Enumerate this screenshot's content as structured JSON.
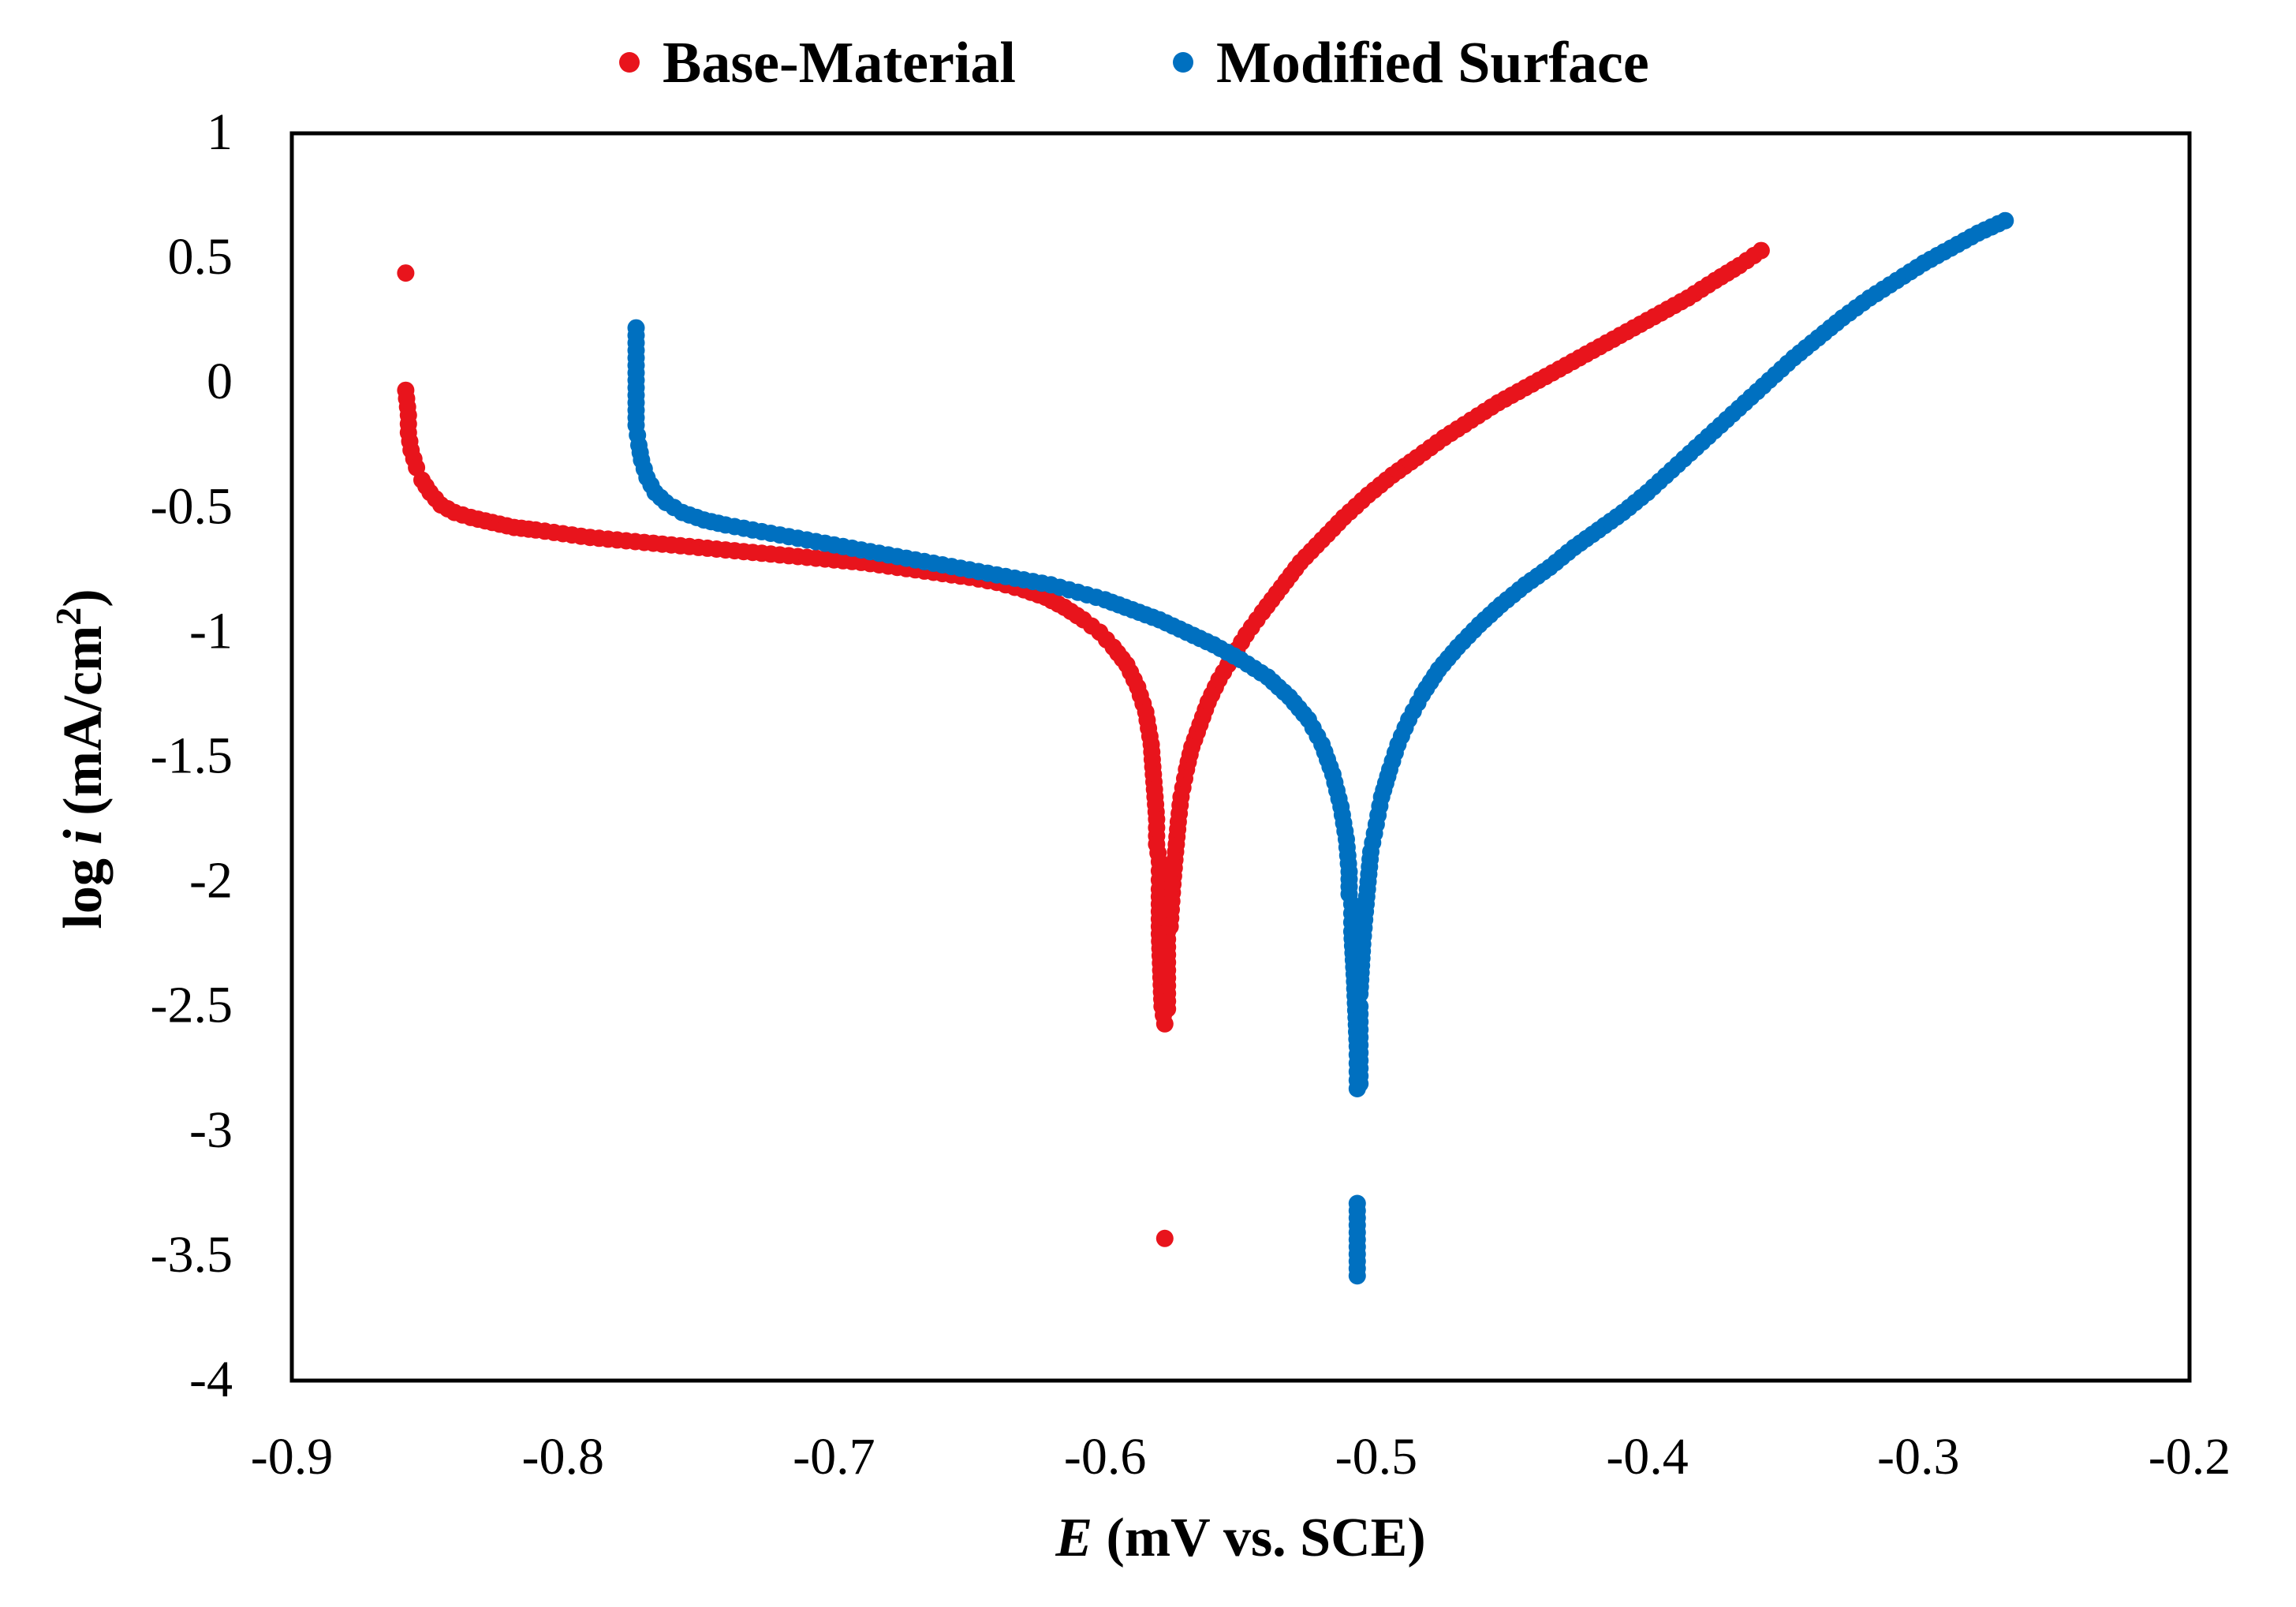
{
  "chart_data": {
    "type": "scatter",
    "title": "",
    "xlabel": {
      "italic": "E",
      "rest": " (mV vs. SCE)"
    },
    "ylabel": {
      "prefix": "log ",
      "italic": "i",
      "unit": " (mA/cm",
      "sup": "2",
      "close": ")"
    },
    "xlim": [
      -0.9,
      -0.2
    ],
    "ylim": [
      -4,
      1
    ],
    "x_ticks": [
      -0.9,
      -0.8,
      -0.7,
      -0.6,
      -0.5,
      -0.4,
      -0.3,
      -0.2
    ],
    "x_tick_labels": [
      "-0.9",
      "-0.8",
      "-0.7",
      "-0.6",
      "-0.5",
      "-0.4",
      "-0.3",
      "-0.2"
    ],
    "y_ticks": [
      1,
      0.5,
      0,
      -0.5,
      -1,
      -1.5,
      -2,
      -2.5,
      -3,
      -3.5,
      -4
    ],
    "y_tick_labels": [
      "1",
      "0.5",
      "0",
      "-0.5",
      "-1",
      "-1.5",
      "-2",
      "-2.5",
      "-3",
      "-3.5",
      "-4"
    ],
    "grid": false,
    "legend_position": "top",
    "series": [
      {
        "name": "Base-Material",
        "color": "#e8141c",
        "points": [
          [
            -0.858,
            0.44
          ],
          [
            -0.858,
            -0.03
          ],
          [
            -0.857,
            -0.13
          ],
          [
            -0.857,
            -0.2
          ],
          [
            -0.856,
            -0.27
          ],
          [
            -0.854,
            -0.34
          ],
          [
            -0.852,
            -0.39
          ],
          [
            -0.849,
            -0.44
          ],
          [
            -0.845,
            -0.49
          ],
          [
            -0.84,
            -0.52
          ],
          [
            -0.834,
            -0.54
          ],
          [
            -0.826,
            -0.56
          ],
          [
            -0.818,
            -0.58
          ],
          [
            -0.81,
            -0.59
          ],
          [
            -0.8,
            -0.605
          ],
          [
            -0.79,
            -0.62
          ],
          [
            -0.78,
            -0.63
          ],
          [
            -0.77,
            -0.64
          ],
          [
            -0.76,
            -0.65
          ],
          [
            -0.75,
            -0.66
          ],
          [
            -0.74,
            -0.67
          ],
          [
            -0.73,
            -0.68
          ],
          [
            -0.72,
            -0.69
          ],
          [
            -0.71,
            -0.7
          ],
          [
            -0.7,
            -0.71
          ],
          [
            -0.69,
            -0.72
          ],
          [
            -0.68,
            -0.735
          ],
          [
            -0.67,
            -0.75
          ],
          [
            -0.66,
            -0.765
          ],
          [
            -0.65,
            -0.78
          ],
          [
            -0.64,
            -0.8
          ],
          [
            -0.63,
            -0.83
          ],
          [
            -0.622,
            -0.86
          ],
          [
            -0.615,
            -0.9
          ],
          [
            -0.608,
            -0.95
          ],
          [
            -0.602,
            -1.0
          ],
          [
            -0.597,
            -1.06
          ],
          [
            -0.592,
            -1.13
          ],
          [
            -0.588,
            -1.22
          ],
          [
            -0.585,
            -1.32
          ],
          [
            -0.583,
            -1.45
          ],
          [
            -0.582,
            -1.6
          ],
          [
            -0.581,
            -1.75
          ],
          [
            -0.581,
            -1.85
          ],
          [
            -0.58,
            -1.92
          ],
          [
            -0.58,
            -2.03
          ],
          [
            -0.58,
            -2.21
          ],
          [
            -0.579,
            -2.5
          ],
          [
            -0.578,
            -2.57
          ],
          [
            -0.578,
            -3.43
          ],
          [
            -0.577,
            -2.51
          ],
          [
            -0.577,
            -2.2
          ],
          [
            -0.576,
            -2.18
          ],
          [
            -0.575,
            -2.01
          ],
          [
            -0.574,
            -1.88
          ],
          [
            -0.573,
            -1.76
          ],
          [
            -0.572,
            -1.66
          ],
          [
            -0.57,
            -1.55
          ],
          [
            -0.568,
            -1.46
          ],
          [
            -0.565,
            -1.37
          ],
          [
            -0.562,
            -1.28
          ],
          [
            -0.558,
            -1.19
          ],
          [
            -0.553,
            -1.1
          ],
          [
            -0.548,
            -1.01
          ],
          [
            -0.542,
            -0.92
          ],
          [
            -0.535,
            -0.82
          ],
          [
            -0.528,
            -0.72
          ],
          [
            -0.52,
            -0.63
          ],
          [
            -0.512,
            -0.54
          ],
          [
            -0.503,
            -0.45
          ],
          [
            -0.494,
            -0.37
          ],
          [
            -0.485,
            -0.3
          ],
          [
            -0.475,
            -0.22
          ],
          [
            -0.465,
            -0.15
          ],
          [
            -0.455,
            -0.08
          ],
          [
            -0.445,
            -0.02
          ],
          [
            -0.435,
            0.04
          ],
          [
            -0.425,
            0.1
          ],
          [
            -0.415,
            0.16
          ],
          [
            -0.405,
            0.22
          ],
          [
            -0.395,
            0.28
          ],
          [
            -0.385,
            0.34
          ],
          [
            -0.375,
            0.41
          ],
          [
            -0.366,
            0.47
          ],
          [
            -0.358,
            0.53
          ]
        ]
      },
      {
        "name": "Modified Surface",
        "color": "#0070c0",
        "points": [
          [
            -0.773,
            0.22
          ],
          [
            -0.773,
            -0.17
          ],
          [
            -0.772,
            -0.25
          ],
          [
            -0.771,
            -0.31
          ],
          [
            -0.769,
            -0.38
          ],
          [
            -0.766,
            -0.44
          ],
          [
            -0.762,
            -0.48
          ],
          [
            -0.756,
            -0.52
          ],
          [
            -0.748,
            -0.55
          ],
          [
            -0.74,
            -0.57
          ],
          [
            -0.73,
            -0.59
          ],
          [
            -0.72,
            -0.61
          ],
          [
            -0.71,
            -0.63
          ],
          [
            -0.7,
            -0.65
          ],
          [
            -0.69,
            -0.67
          ],
          [
            -0.68,
            -0.69
          ],
          [
            -0.67,
            -0.71
          ],
          [
            -0.66,
            -0.73
          ],
          [
            -0.65,
            -0.75
          ],
          [
            -0.64,
            -0.77
          ],
          [
            -0.63,
            -0.79
          ],
          [
            -0.62,
            -0.81
          ],
          [
            -0.61,
            -0.84
          ],
          [
            -0.6,
            -0.87
          ],
          [
            -0.59,
            -0.91
          ],
          [
            -0.58,
            -0.95
          ],
          [
            -0.57,
            -1.0
          ],
          [
            -0.56,
            -1.05
          ],
          [
            -0.55,
            -1.11
          ],
          [
            -0.54,
            -1.18
          ],
          [
            -0.532,
            -1.26
          ],
          [
            -0.525,
            -1.35
          ],
          [
            -0.52,
            -1.45
          ],
          [
            -0.516,
            -1.57
          ],
          [
            -0.513,
            -1.7
          ],
          [
            -0.511,
            -1.83
          ],
          [
            -0.51,
            -1.96
          ],
          [
            -0.51,
            -2.05
          ],
          [
            -0.509,
            -2.09
          ],
          [
            -0.509,
            -2.2
          ],
          [
            -0.508,
            -2.4
          ],
          [
            -0.507,
            -2.66
          ],
          [
            -0.507,
            -2.83
          ],
          [
            -0.507,
            -3.29
          ],
          [
            -0.507,
            -3.58
          ],
          [
            -0.506,
            -2.81
          ],
          [
            -0.506,
            -2.5
          ],
          [
            -0.506,
            -2.45
          ],
          [
            -0.505,
            -2.25
          ],
          [
            -0.504,
            -2.12
          ],
          [
            -0.503,
            -2.0
          ],
          [
            -0.502,
            -1.88
          ],
          [
            -0.5,
            -1.77
          ],
          [
            -0.498,
            -1.66
          ],
          [
            -0.495,
            -1.55
          ],
          [
            -0.492,
            -1.45
          ],
          [
            -0.488,
            -1.35
          ],
          [
            -0.483,
            -1.25
          ],
          [
            -0.477,
            -1.15
          ],
          [
            -0.47,
            -1.06
          ],
          [
            -0.462,
            -0.97
          ],
          [
            -0.454,
            -0.89
          ],
          [
            -0.445,
            -0.81
          ],
          [
            -0.436,
            -0.74
          ],
          [
            -0.427,
            -0.66
          ],
          [
            -0.418,
            -0.59
          ],
          [
            -0.409,
            -0.52
          ],
          [
            -0.4,
            -0.44
          ],
          [
            -0.391,
            -0.35
          ],
          [
            -0.382,
            -0.26
          ],
          [
            -0.373,
            -0.17
          ],
          [
            -0.364,
            -0.08
          ],
          [
            -0.355,
            0.01
          ],
          [
            -0.346,
            0.1
          ],
          [
            -0.337,
            0.18
          ],
          [
            -0.328,
            0.26
          ],
          [
            -0.318,
            0.34
          ],
          [
            -0.308,
            0.41
          ],
          [
            -0.298,
            0.48
          ],
          [
            -0.288,
            0.54
          ],
          [
            -0.278,
            0.6
          ],
          [
            -0.268,
            0.65
          ]
        ]
      }
    ]
  }
}
